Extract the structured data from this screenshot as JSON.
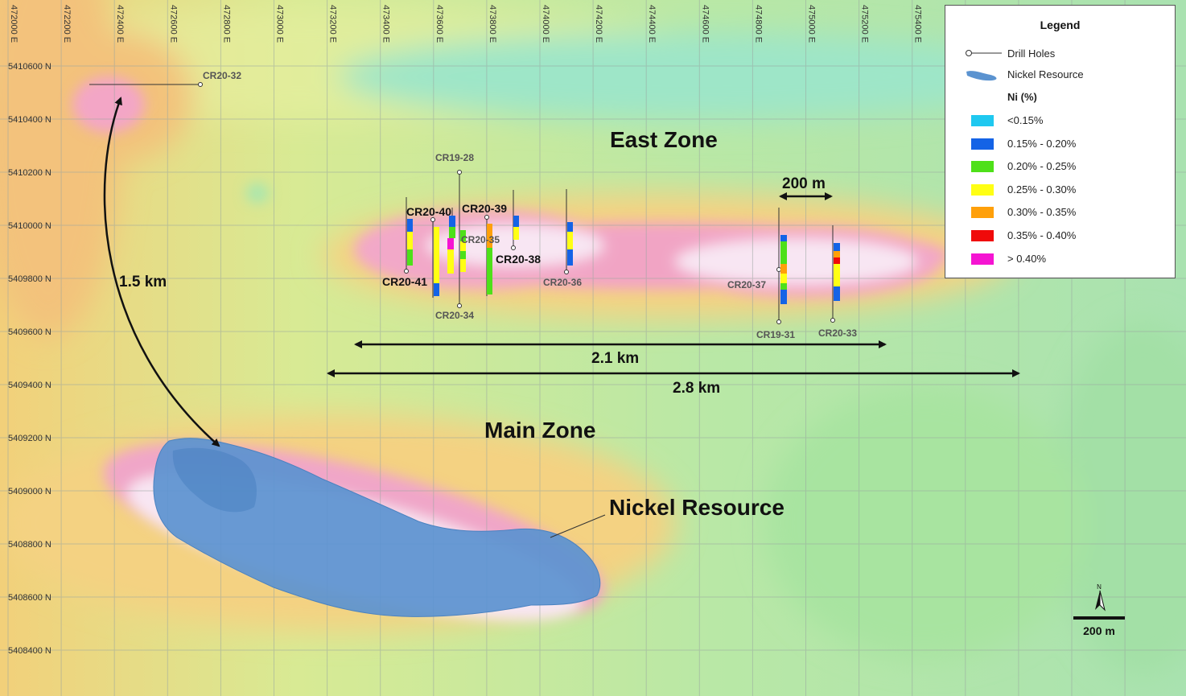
{
  "easting_labels": [
    "472000 E",
    "472200 E",
    "472400 E",
    "472600 E",
    "472800 E",
    "473000 E",
    "473200 E",
    "473400 E",
    "473600 E",
    "473800 E",
    "474000 E",
    "474200 E",
    "474400 E",
    "474600 E",
    "474800 E",
    "475000 E",
    "475200 E",
    "475400 E"
  ],
  "northing_labels": [
    "5410600 N",
    "5410400 N",
    "5410200 N",
    "5410000 N",
    "5409800 N",
    "5409600 N",
    "5409400 N",
    "5409200 N",
    "5409000 N",
    "5408800 N",
    "5408600 N",
    "5408400 N"
  ],
  "zones": {
    "east": "East Zone",
    "main": "Main Zone",
    "resource": "Nickel Resource"
  },
  "distances": {
    "d_1_5": "1.5 km",
    "d_2_1": "2.1 km",
    "d_2_8": "2.8 km",
    "d_200": "200 m"
  },
  "drill_holes": {
    "cr20_32": "CR20-32",
    "cr19_28": "CR19-28",
    "cr20_40": "CR20-40",
    "cr20_39": "CR20-39",
    "cr20_35": "CR20-35",
    "cr20_38": "CR20-38",
    "cr20_41": "CR20-41",
    "cr20_34": "CR20-34",
    "cr20_36": "CR20-36",
    "cr20_37": "CR20-37",
    "cr19_31": "CR19-31",
    "cr20_33": "CR20-33"
  },
  "legend": {
    "title": "Legend",
    "drill_holes": "Drill Holes",
    "nickel_resource": "Nickel Resource",
    "ni_title": "Ni (%)",
    "classes": [
      {
        "label": "<0.15%",
        "color": "#1fc8f0"
      },
      {
        "label": "0.15% - 0.20%",
        "color": "#1463e6"
      },
      {
        "label": "0.20% - 0.25%",
        "color": "#4ee019"
      },
      {
        "label": "0.25% - 0.30%",
        "color": "#ffff14"
      },
      {
        "label": "0.30% - 0.35%",
        "color": "#ffa00a"
      },
      {
        "label": "0.35% - 0.40%",
        "color": "#f00a0a"
      },
      {
        "label": "> 0.40%",
        "color": "#f514d2"
      }
    ]
  },
  "scale": {
    "north": "N",
    "label": "200 m"
  }
}
